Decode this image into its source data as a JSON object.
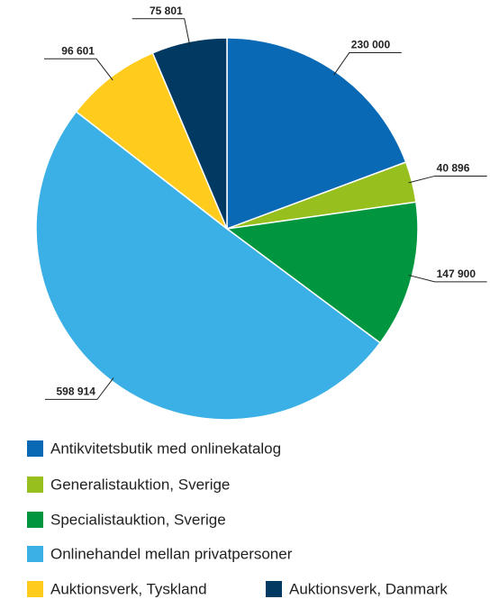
{
  "chart_data": {
    "type": "pie",
    "categories": [
      "Antikvitetsbutik med onlinekatalog",
      "Generalistauktion, Sverige",
      "Specialistauktion, Sverige",
      "Onlinehandel mellan privatpersoner",
      "Auktionsverk, Tyskland",
      "Auktionsverk, Danmark"
    ],
    "values": [
      230000,
      40896,
      147900,
      598914,
      96601,
      75801
    ],
    "value_labels": [
      "230 000",
      "40 896",
      "147 900",
      "598 914",
      "96 601",
      "75 801"
    ],
    "colors": [
      "#0a69b4",
      "#97bf1d",
      "#009640",
      "#3bb0e6",
      "#ffcb1d",
      "#003a63"
    ],
    "legend": "bottom"
  }
}
